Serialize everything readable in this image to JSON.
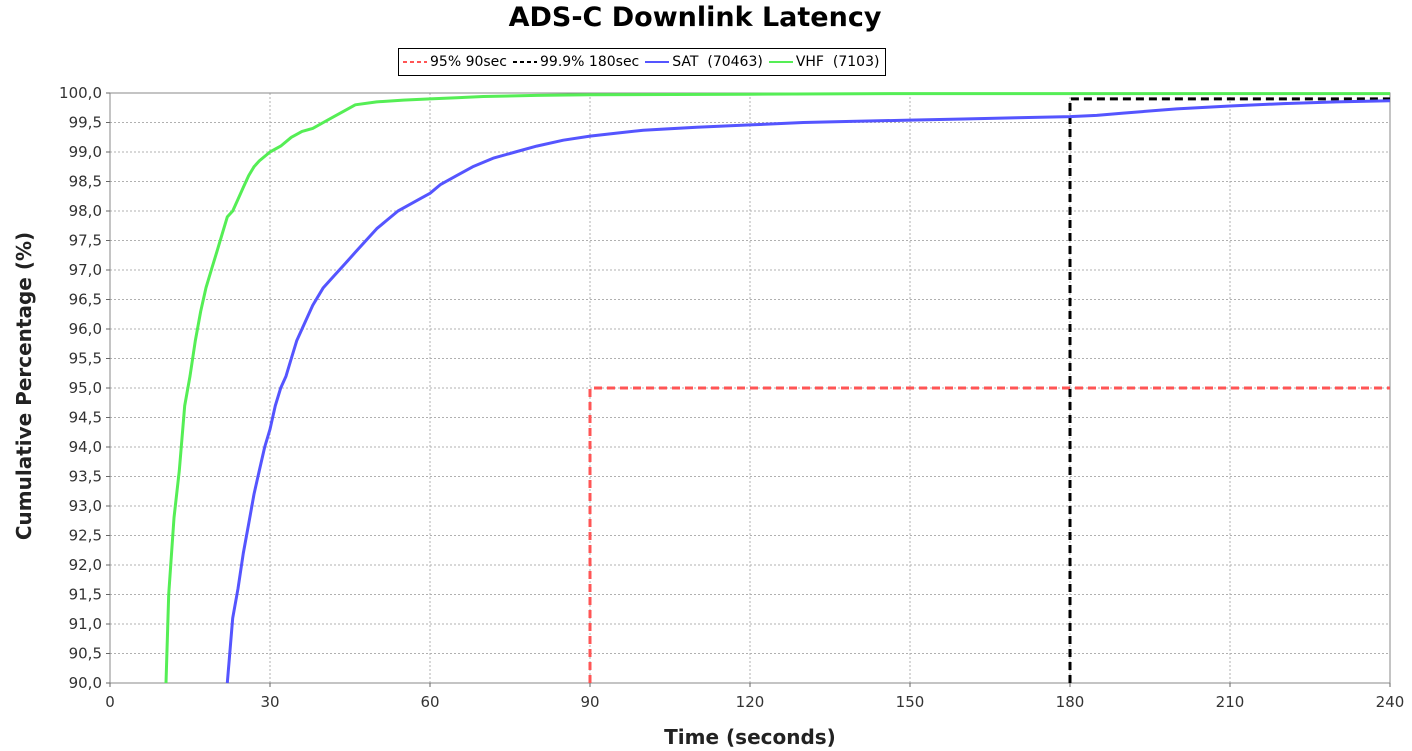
{
  "chart_data": {
    "type": "line",
    "title": "ADS-C Downlink Latency",
    "xlabel": "Time (seconds)",
    "ylabel": "Cumulative Percentage (%)",
    "xlim": [
      0,
      240
    ],
    "ylim": [
      90,
      100
    ],
    "xticks": [
      0,
      30,
      60,
      90,
      120,
      150,
      180,
      210,
      240
    ],
    "xtick_labels": [
      "0",
      "30",
      "60",
      "90",
      "120",
      "150",
      "180",
      "210",
      "240"
    ],
    "yticks": [
      90,
      90.5,
      91,
      91.5,
      92,
      92.5,
      93,
      93.5,
      94,
      94.5,
      95,
      95.5,
      96,
      96.5,
      97,
      97.5,
      98,
      98.5,
      99,
      99.5,
      100
    ],
    "ytick_labels": [
      "90,0",
      "90,5",
      "91,0",
      "91,5",
      "92,0",
      "92,5",
      "93,0",
      "93,5",
      "94,0",
      "94,5",
      "95,0",
      "95,5",
      "96,0",
      "96,5",
      "97,0",
      "97,5",
      "98,0",
      "98,5",
      "99,0",
      "99,5",
      "100,0"
    ],
    "grid": true,
    "legend_position": "top-center",
    "series": [
      {
        "name": "95% 90sec",
        "color": "#ff5555",
        "dashed": true,
        "x": [
          90,
          90,
          240
        ],
        "y": [
          90,
          95,
          95
        ]
      },
      {
        "name": "99.9% 180sec",
        "color": "#000000",
        "dashed": true,
        "x": [
          180,
          180,
          240
        ],
        "y": [
          90,
          99.9,
          99.9
        ]
      },
      {
        "name": "SAT  (70463)",
        "color": "#5555ff",
        "dashed": false,
        "x": [
          22,
          23,
          24,
          25,
          26,
          27,
          28,
          29,
          30,
          31,
          32,
          33,
          34,
          35,
          36,
          38,
          40,
          42,
          44,
          46,
          48,
          50,
          52,
          54,
          56,
          58,
          60,
          62,
          65,
          68,
          72,
          76,
          80,
          85,
          90,
          95,
          100,
          110,
          120,
          130,
          140,
          150,
          160,
          170,
          180,
          185,
          190,
          200,
          210,
          220,
          230,
          240
        ],
        "y": [
          90,
          91.1,
          91.6,
          92.2,
          92.7,
          93.2,
          93.6,
          94.0,
          94.3,
          94.7,
          95.0,
          95.2,
          95.5,
          95.8,
          96.0,
          96.4,
          96.7,
          96.9,
          97.1,
          97.3,
          97.5,
          97.7,
          97.85,
          98.0,
          98.1,
          98.2,
          98.3,
          98.45,
          98.6,
          98.75,
          98.9,
          99.0,
          99.1,
          99.2,
          99.27,
          99.32,
          99.37,
          99.42,
          99.46,
          99.5,
          99.52,
          99.54,
          99.56,
          99.58,
          99.6,
          99.62,
          99.66,
          99.73,
          99.78,
          99.82,
          99.85,
          99.87
        ]
      },
      {
        "name": "VHF  (7103)",
        "color": "#55ee55",
        "dashed": false,
        "x": [
          10.5,
          11,
          12,
          13,
          14,
          15,
          16,
          17,
          18,
          19,
          20,
          21,
          22,
          23,
          24,
          25,
          26,
          27,
          28,
          30,
          32,
          34,
          36,
          38,
          40,
          42,
          44,
          46,
          50,
          55,
          60,
          65,
          70,
          80,
          90,
          120,
          150,
          240
        ],
        "y": [
          90,
          91.5,
          92.8,
          93.6,
          94.7,
          95.2,
          95.8,
          96.3,
          96.7,
          97.0,
          97.3,
          97.6,
          97.9,
          98.0,
          98.2,
          98.4,
          98.6,
          98.75,
          98.85,
          99.0,
          99.1,
          99.25,
          99.35,
          99.4,
          99.5,
          99.6,
          99.7,
          99.8,
          99.85,
          99.88,
          99.9,
          99.92,
          99.94,
          99.96,
          99.97,
          99.98,
          99.99,
          99.99
        ]
      }
    ]
  }
}
